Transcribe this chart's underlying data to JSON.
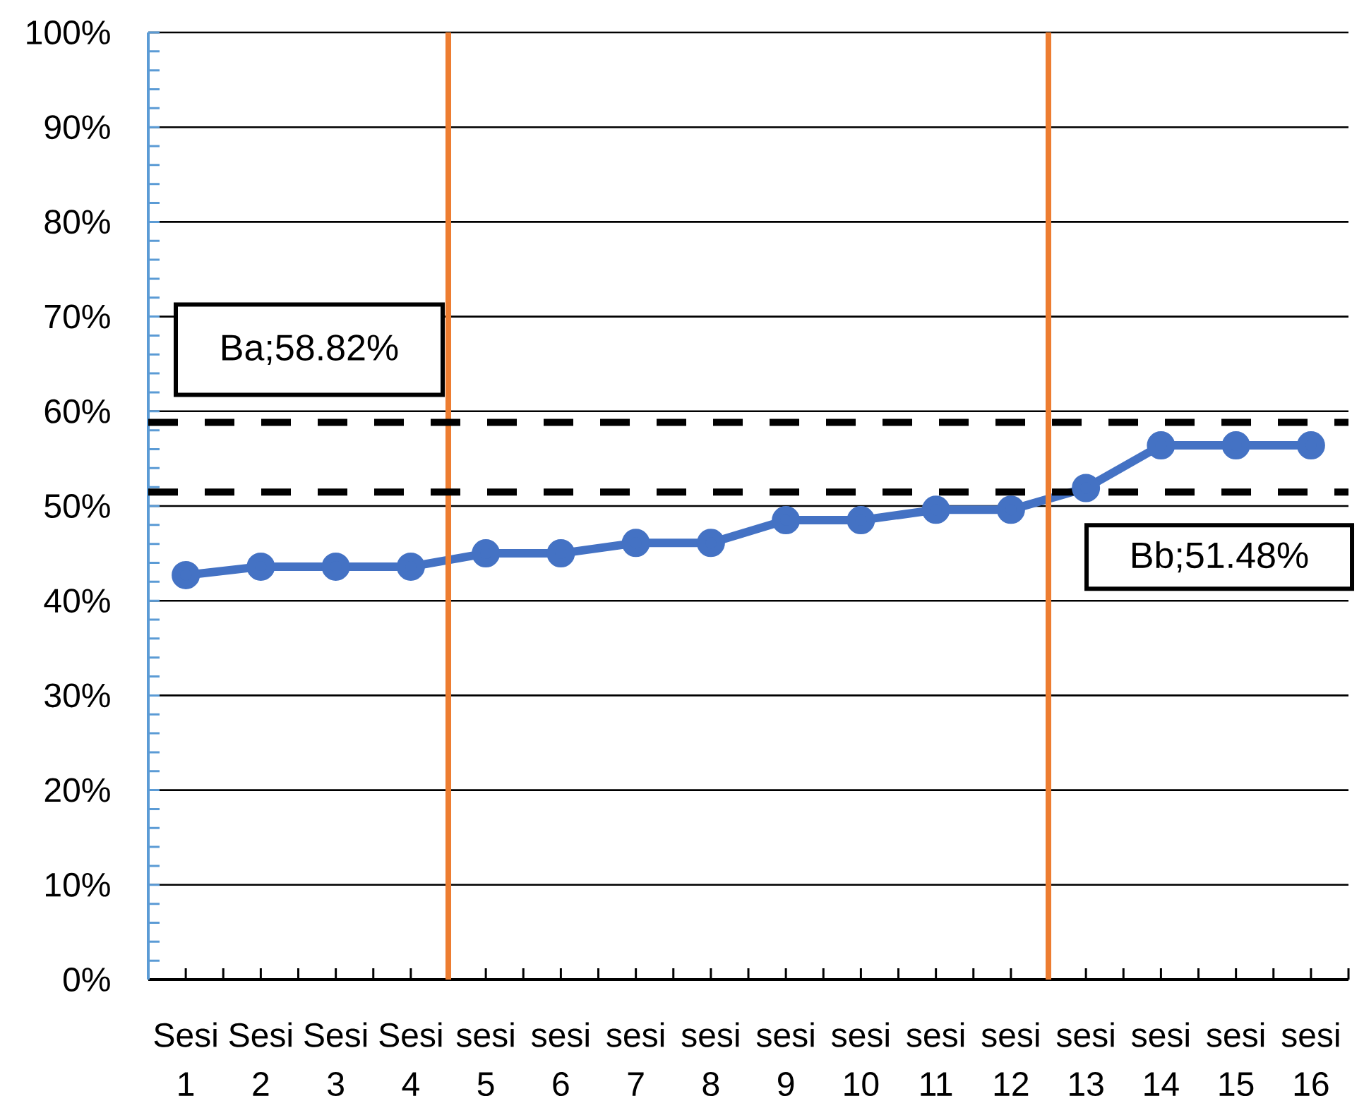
{
  "chart_data": {
    "type": "line",
    "categories": [
      "Sesi 1",
      "Sesi 2",
      "Sesi 3",
      "Sesi 4",
      "sesi 5",
      "sesi 6",
      "sesi 7",
      "sesi 8",
      "sesi 9",
      "sesi 10",
      "sesi 11",
      "sesi 12",
      "sesi 13",
      "sesi 14",
      "sesi 15",
      "sesi 16"
    ],
    "values": [
      42.7,
      43.6,
      43.6,
      43.6,
      45.0,
      45.0,
      46.1,
      46.1,
      48.5,
      48.5,
      49.6,
      49.6,
      51.9,
      56.4,
      56.4,
      56.4
    ],
    "color": "#4472c4",
    "marker": "circle",
    "line_style": "solid",
    "ylim": [
      0,
      100
    ],
    "yticks": [
      {
        "value": 0,
        "label": "0%"
      },
      {
        "value": 2,
        "label": null
      },
      {
        "value": 4,
        "label": null
      },
      {
        "value": 6,
        "label": null
      },
      {
        "value": 8,
        "label": null
      },
      {
        "value": 10,
        "label": "10%"
      },
      {
        "value": 12,
        "label": null
      },
      {
        "value": 14,
        "label": null
      },
      {
        "value": 16,
        "label": null
      },
      {
        "value": 18,
        "label": null
      },
      {
        "value": 20,
        "label": "20%"
      },
      {
        "value": 22,
        "label": null
      },
      {
        "value": 24,
        "label": null
      },
      {
        "value": 26,
        "label": null
      },
      {
        "value": 28,
        "label": null
      },
      {
        "value": 30,
        "label": "30%"
      },
      {
        "value": 32,
        "label": null
      },
      {
        "value": 34,
        "label": null
      },
      {
        "value": 36,
        "label": null
      },
      {
        "value": 38,
        "label": null
      },
      {
        "value": 40,
        "label": "40%"
      },
      {
        "value": 42,
        "label": null
      },
      {
        "value": 44,
        "label": null
      },
      {
        "value": 46,
        "label": null
      },
      {
        "value": 48,
        "label": null
      },
      {
        "value": 50,
        "label": "50%"
      },
      {
        "value": 52,
        "label": null
      },
      {
        "value": 54,
        "label": null
      },
      {
        "value": 56,
        "label": null
      },
      {
        "value": 58,
        "label": null
      },
      {
        "value": 60,
        "label": "60%"
      },
      {
        "value": 62,
        "label": null
      },
      {
        "value": 64,
        "label": null
      },
      {
        "value": 66,
        "label": null
      },
      {
        "value": 68,
        "label": null
      },
      {
        "value": 70,
        "label": "70%"
      },
      {
        "value": 72,
        "label": null
      },
      {
        "value": 74,
        "label": null
      },
      {
        "value": 76,
        "label": null
      },
      {
        "value": 78,
        "label": null
      },
      {
        "value": 80,
        "label": "80%"
      },
      {
        "value": 82,
        "label": null
      },
      {
        "value": 84,
        "label": null
      },
      {
        "value": 86,
        "label": null
      },
      {
        "value": 88,
        "label": null
      },
      {
        "value": 90,
        "label": "90%"
      },
      {
        "value": 92,
        "label": null
      },
      {
        "value": 94,
        "label": null
      },
      {
        "value": 96,
        "label": null
      },
      {
        "value": 98,
        "label": null
      },
      {
        "value": 100,
        "label": "100%"
      }
    ],
    "grid": "y",
    "ref_lines": [
      {
        "axis": "y",
        "value": 58.82,
        "label": "Ba;58.82%",
        "color": "#000000",
        "line_style": "dashed"
      },
      {
        "axis": "y",
        "value": 51.48,
        "label": "Bb;51.48%",
        "color": "#000000",
        "line_style": "dashed"
      }
    ]
  }
}
